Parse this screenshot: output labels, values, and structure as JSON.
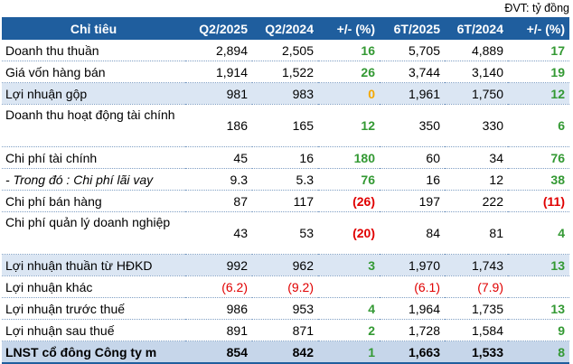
{
  "unit_note": "ĐVT: tỷ đồng",
  "headers": [
    "Chỉ tiêu",
    "Q2/2025",
    "Q2/2024",
    "+/- (%)",
    "6T/2025",
    "6T/2024",
    "+/- (%)"
  ],
  "rows": [
    {
      "label": "Doanh thu thuần",
      "q2_2025": "2,894",
      "q2_2024": "2,505",
      "q_chg": "16",
      "h1_2025": "5,705",
      "h1_2024": "4,889",
      "h_chg": "17"
    },
    {
      "label": "Giá vốn hàng bán",
      "q2_2025": "1,914",
      "q2_2024": "1,522",
      "q_chg": "26",
      "h1_2025": "3,744",
      "h1_2024": "3,140",
      "h_chg": "19"
    },
    {
      "label": "Lợi nhuận gộp",
      "q2_2025": "981",
      "q2_2024": "983",
      "q_chg": "0",
      "h1_2025": "1,961",
      "h1_2024": "1,750",
      "h_chg": "12"
    },
    {
      "label": "Doanh thu hoạt động tài chính",
      "q2_2025": "186",
      "q2_2024": "165",
      "q_chg": "12",
      "h1_2025": "350",
      "h1_2024": "330",
      "h_chg": "6"
    },
    {
      "label": "Chi phí tài chính",
      "q2_2025": "45",
      "q2_2024": "16",
      "q_chg": "180",
      "h1_2025": "60",
      "h1_2024": "34",
      "h_chg": "76"
    },
    {
      "label": "- Trong đó : Chi phí lãi vay",
      "q2_2025": "9.3",
      "q2_2024": "5.3",
      "q_chg": "76",
      "h1_2025": "16",
      "h1_2024": "12",
      "h_chg": "38"
    },
    {
      "label": "Chi phí bán hàng",
      "q2_2025": "87",
      "q2_2024": "117",
      "q_chg": "(26)",
      "h1_2025": "197",
      "h1_2024": "222",
      "h_chg": "(11)"
    },
    {
      "label": "Chi phí quản lý doanh nghiệp",
      "q2_2025": "43",
      "q2_2024": "53",
      "q_chg": "(20)",
      "h1_2025": "84",
      "h1_2024": "81",
      "h_chg": "4"
    },
    {
      "label": "Lợi nhuận thuần từ HĐKD",
      "q2_2025": "992",
      "q2_2024": "962",
      "q_chg": "3",
      "h1_2025": "1,970",
      "h1_2024": "1,743",
      "h_chg": "13"
    },
    {
      "label": "Lợi nhuận khác",
      "q2_2025": "(6.2)",
      "q2_2024": "(9.2)",
      "q_chg": "",
      "h1_2025": "(6.1)",
      "h1_2024": "(7.9)",
      "h_chg": ""
    },
    {
      "label": "Lợi nhuận trước thuế",
      "q2_2025": "986",
      "q2_2024": "953",
      "q_chg": "4",
      "h1_2025": "1,964",
      "h1_2024": "1,735",
      "h_chg": "13"
    },
    {
      "label": "Lợi nhuận sau thuế",
      "q2_2025": "891",
      "q2_2024": "871",
      "q_chg": "2",
      "h1_2025": "1,728",
      "h1_2024": "1,584",
      "h_chg": "9"
    },
    {
      "label": "LNST cổ đông Công ty m",
      "q2_2025": "854",
      "q2_2024": "842",
      "q_chg": "1",
      "h1_2025": "1,663",
      "h1_2024": "1,533",
      "h_chg": "8"
    }
  ]
}
